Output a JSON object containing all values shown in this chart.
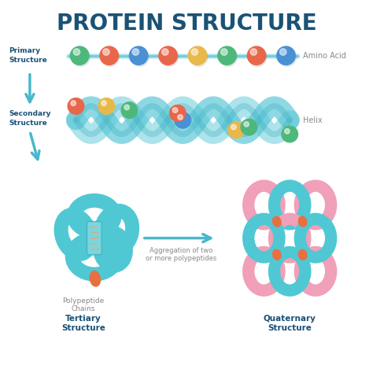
{
  "title": "PROTEIN STRUCTURE",
  "title_color": "#1a5276",
  "title_fontsize": 20,
  "bg_color": "#ffffff",
  "arrow_color": "#4ab8cc",
  "label_color_bold": "#1a5276",
  "label_color_gray": "#888888",
  "bead_colors_primary": [
    "#4db87a",
    "#e8674a",
    "#4a90d4",
    "#e8674a",
    "#e8b84a",
    "#4db87a",
    "#e8674a",
    "#4a90d4"
  ],
  "helix_color": "#5dc8d8",
  "helix_dark": "#3aacbc",
  "tertiary_color": "#4fc8d4",
  "quaternary_teal": "#4fc8d4",
  "quaternary_pink": "#f0a0b8",
  "orange_color": "#e87040",
  "helix_bead_colors": [
    "#e8674a",
    "#e8b84a",
    "#4db87a",
    "#e8674a",
    "#4a90d4",
    "#e8b84a",
    "#4db87a",
    "#e8674a",
    "#4a90d4"
  ],
  "labels": {
    "primary": "Primary\nStructure",
    "secondary": "Secondary\nStructure",
    "amino_acid": "Amino Acid",
    "helix": "Helix",
    "polypeptide": "Polypeptide\nChains",
    "tertiary": "Tertiary\nStructure",
    "aggregation": "Aggregation of two\nor more polypeptides",
    "quaternary": "Quaternary\nStructure"
  }
}
